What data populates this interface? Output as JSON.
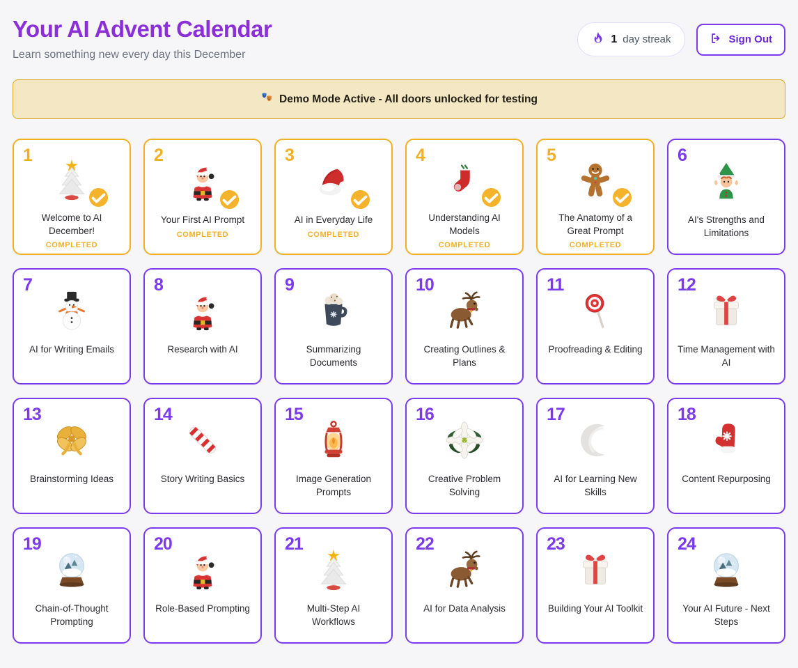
{
  "header": {
    "title": "Your AI Advent Calendar",
    "subtitle": "Learn something new every day this December",
    "streak": {
      "icon": "flame-icon",
      "count": "1",
      "label": "day streak"
    },
    "sign_out": {
      "icon": "logout-icon",
      "label": "Sign Out"
    }
  },
  "banner": {
    "icon": "theater-masks-icon",
    "text": "Demo Mode Active - All doors unlocked for testing"
  },
  "colors": {
    "title_purple": "#8B2FD9",
    "accent_purple": "#7C3AED",
    "completed_gold": "#F1B024",
    "banner_bg": "#F3E7C4",
    "banner_border": "#D9A520",
    "page_bg": "#F6F6F8",
    "card_bg": "#FFFFFF"
  },
  "doors": [
    {
      "number": "1",
      "title": "Welcome to AI December!",
      "completed": true,
      "status": "COMPLETED",
      "icon": "christmas-tree-icon"
    },
    {
      "number": "2",
      "title": "Your First AI Prompt",
      "completed": true,
      "status": "COMPLETED",
      "icon": "santa-icon"
    },
    {
      "number": "3",
      "title": "AI in Everyday Life",
      "completed": true,
      "status": "COMPLETED",
      "icon": "santa-hat-icon"
    },
    {
      "number": "4",
      "title": "Understanding AI Models",
      "completed": true,
      "status": "COMPLETED",
      "icon": "stocking-icon"
    },
    {
      "number": "5",
      "title": "The Anatomy of a Great Prompt",
      "completed": true,
      "status": "COMPLETED",
      "icon": "gingerbread-icon"
    },
    {
      "number": "6",
      "title": "AI's Strengths and Limitations",
      "completed": false,
      "icon": "elf-icon"
    },
    {
      "number": "7",
      "title": "AI for Writing Emails",
      "completed": false,
      "icon": "snowman-icon"
    },
    {
      "number": "8",
      "title": "Research with AI",
      "completed": false,
      "icon": "santa-icon"
    },
    {
      "number": "9",
      "title": "Summarizing Documents",
      "completed": false,
      "icon": "cocoa-mug-icon"
    },
    {
      "number": "10",
      "title": "Creating Outlines & Plans",
      "completed": false,
      "icon": "reindeer-icon"
    },
    {
      "number": "11",
      "title": "Proofreading & Editing",
      "completed": false,
      "icon": "lollipop-icon"
    },
    {
      "number": "12",
      "title": "Time Management with AI",
      "completed": false,
      "icon": "gift-icon"
    },
    {
      "number": "13",
      "title": "Brainstorming Ideas",
      "completed": false,
      "icon": "ribbon-bow-icon"
    },
    {
      "number": "14",
      "title": "Story Writing Basics",
      "completed": false,
      "icon": "candy-cane-icon"
    },
    {
      "number": "15",
      "title": "Image Generation Prompts",
      "completed": false,
      "icon": "lantern-icon"
    },
    {
      "number": "16",
      "title": "Creative Problem Solving",
      "completed": false,
      "icon": "poinsettia-icon"
    },
    {
      "number": "17",
      "title": "AI for Learning New Skills",
      "completed": false,
      "icon": "crescent-moon-icon"
    },
    {
      "number": "18",
      "title": "Content Repurposing",
      "completed": false,
      "icon": "mitten-icon"
    },
    {
      "number": "19",
      "title": "Chain-of-Thought Prompting",
      "completed": false,
      "icon": "snow-globe-icon"
    },
    {
      "number": "20",
      "title": "Role-Based Prompting",
      "completed": false,
      "icon": "santa-icon"
    },
    {
      "number": "21",
      "title": "Multi-Step AI Workflows",
      "completed": false,
      "icon": "christmas-tree-icon"
    },
    {
      "number": "22",
      "title": "AI for Data Analysis",
      "completed": false,
      "icon": "reindeer-icon"
    },
    {
      "number": "23",
      "title": "Building Your AI Toolkit",
      "completed": false,
      "icon": "gift-icon"
    },
    {
      "number": "24",
      "title": "Your AI Future - Next Steps",
      "completed": false,
      "icon": "snow-globe-icon"
    }
  ]
}
